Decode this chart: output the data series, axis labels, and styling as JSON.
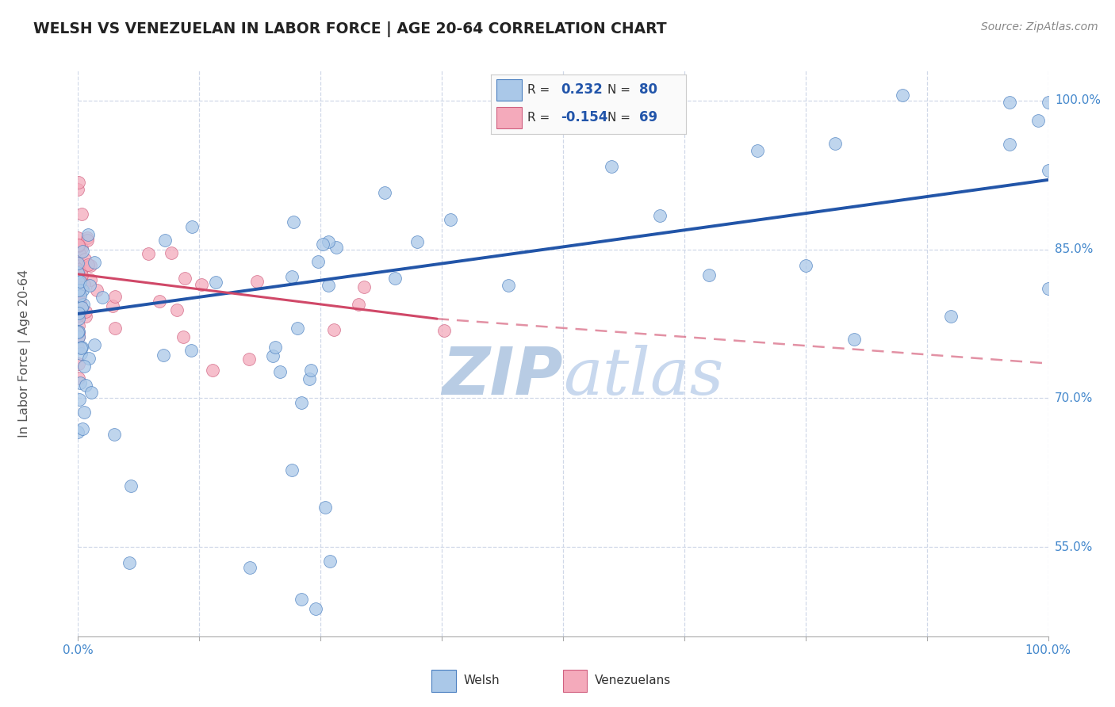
{
  "title": "WELSH VS VENEZUELAN IN LABOR FORCE | AGE 20-64 CORRELATION CHART",
  "source": "Source: ZipAtlas.com",
  "ylabel": "In Labor Force | Age 20-64",
  "xlim": [
    0.0,
    1.0
  ],
  "ylim": [
    0.46,
    1.03
  ],
  "ytick_vals": [
    0.55,
    0.7,
    0.85,
    1.0
  ],
  "ytick_labels": [
    "55.0%",
    "70.0%",
    "85.0%",
    "100.0%"
  ],
  "xtick_vals": [
    0.0,
    1.0
  ],
  "xtick_labels": [
    "0.0%",
    "100.0%"
  ],
  "welsh_R": 0.232,
  "welsh_N": 80,
  "venezuelan_R": -0.154,
  "venezuelan_N": 69,
  "welsh_color": "#aac8e8",
  "welsh_edge_color": "#4a7fc0",
  "welsh_line_color": "#2255a8",
  "venezuelan_color": "#f4aabb",
  "venezuelan_edge_color": "#d06080",
  "venezuelan_line_color": "#d04868",
  "background_color": "#ffffff",
  "grid_color": "#d0d8e8",
  "title_color": "#222222",
  "source_color": "#888888",
  "axis_label_color": "#555555",
  "right_tick_color": "#4488cc",
  "bottom_tick_color": "#4488cc",
  "legend_text_color": "#333333",
  "legend_val_color": "#2255aa",
  "watermark_zip_color": "#b8cce4",
  "watermark_atlas_color": "#c8d8ee"
}
